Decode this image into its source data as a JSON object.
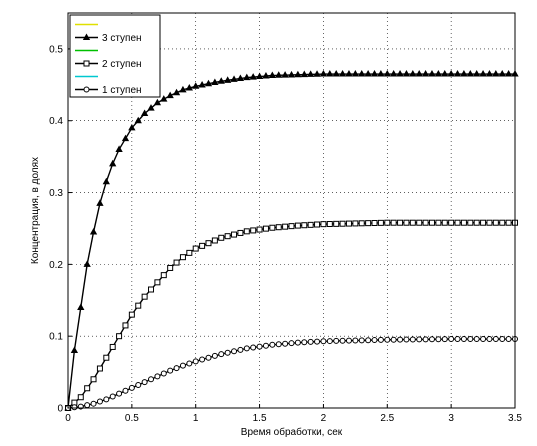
{
  "chart_data": {
    "type": "line",
    "xlabel": "Время обработки, сек",
    "ylabel": "Концентрация, в долях",
    "xlim": [
      0,
      3.5
    ],
    "ylim": [
      0,
      0.55
    ],
    "xticks": [
      "0",
      "0.5",
      "1",
      "1.5",
      "2",
      "2.5",
      "3",
      "3.5"
    ],
    "yticks": [
      "0",
      "0.1",
      "0.2",
      "0.3",
      "0.4",
      "0.5"
    ],
    "grid": true,
    "legend_position": "top-left",
    "series": [
      {
        "name": "",
        "line_color": "#e0e000",
        "marker": "none",
        "legend_only": true
      },
      {
        "name": "3 ступен",
        "line_color": "#000000",
        "marker": "triangle",
        "x": [
          0,
          0.05,
          0.1,
          0.15,
          0.2,
          0.25,
          0.3,
          0.35,
          0.4,
          0.5,
          0.6,
          0.7,
          0.8,
          0.9,
          1.0,
          1.2,
          1.4,
          1.6,
          1.8,
          2.0,
          2.5,
          3.0,
          3.5
        ],
        "y": [
          0,
          0.08,
          0.14,
          0.2,
          0.245,
          0.285,
          0.315,
          0.34,
          0.36,
          0.39,
          0.41,
          0.425,
          0.435,
          0.443,
          0.448,
          0.455,
          0.46,
          0.463,
          0.464,
          0.465,
          0.465,
          0.465,
          0.465
        ]
      },
      {
        "name": "",
        "line_color": "#00c000",
        "marker": "none",
        "legend_only": true
      },
      {
        "name": "2 ступен",
        "line_color": "#000000",
        "marker": "square",
        "x": [
          0,
          0.1,
          0.2,
          0.3,
          0.4,
          0.5,
          0.6,
          0.7,
          0.8,
          0.9,
          1.0,
          1.2,
          1.4,
          1.6,
          1.8,
          2.0,
          2.5,
          3.0,
          3.5
        ],
        "y": [
          0,
          0.015,
          0.04,
          0.07,
          0.1,
          0.13,
          0.155,
          0.175,
          0.195,
          0.21,
          0.222,
          0.237,
          0.246,
          0.251,
          0.254,
          0.256,
          0.258,
          0.258,
          0.258
        ]
      },
      {
        "name": "",
        "line_color": "#00c8d0",
        "marker": "none",
        "legend_only": true
      },
      {
        "name": "1 ступен",
        "line_color": "#000000",
        "marker": "circle",
        "x": [
          0,
          0.1,
          0.2,
          0.3,
          0.4,
          0.5,
          0.6,
          0.7,
          0.8,
          0.9,
          1.0,
          1.2,
          1.4,
          1.6,
          1.8,
          2.0,
          2.5,
          3.0,
          3.5
        ],
        "y": [
          0,
          0.002,
          0.006,
          0.012,
          0.02,
          0.028,
          0.036,
          0.044,
          0.052,
          0.059,
          0.065,
          0.075,
          0.083,
          0.088,
          0.091,
          0.093,
          0.095,
          0.096,
          0.096
        ]
      }
    ]
  }
}
